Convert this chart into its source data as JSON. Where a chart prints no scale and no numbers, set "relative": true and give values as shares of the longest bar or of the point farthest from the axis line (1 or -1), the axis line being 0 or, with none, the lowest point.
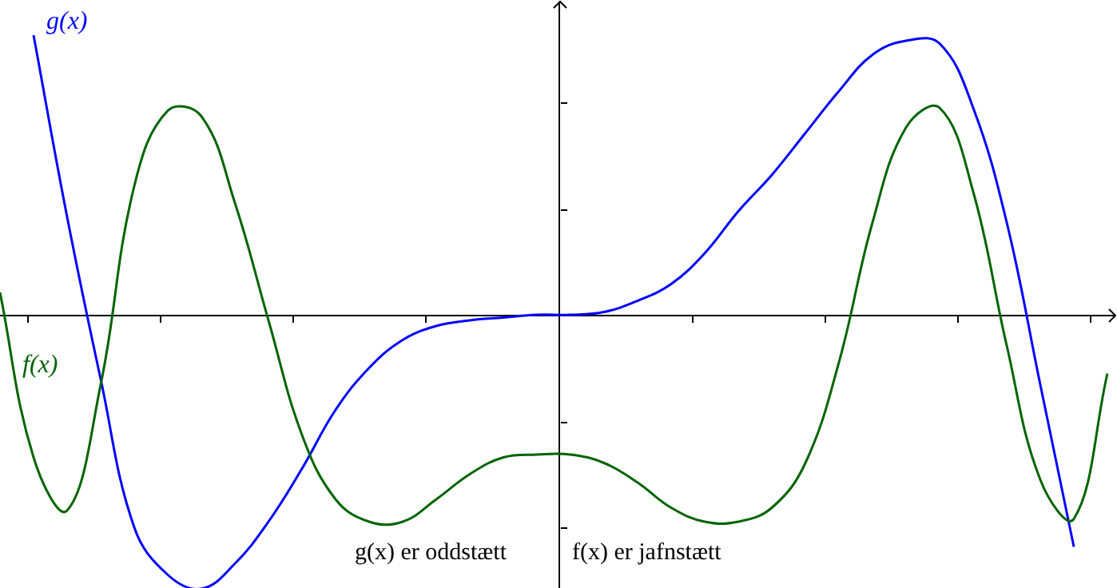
{
  "chart_data": {
    "type": "line",
    "relative": true,
    "categories": [
      null,
      null,
      null,
      null,
      null,
      null,
      null,
      null,
      null,
      null,
      null,
      null,
      null,
      null,
      null,
      null,
      null,
      null,
      null,
      null,
      null,
      null,
      null,
      null,
      null,
      null,
      null,
      null,
      null,
      null,
      null,
      null,
      null,
      null
    ],
    "series": [
      {
        "name": "f(x)",
        "color": "#006400",
        "values": [
          0.08,
          -0.51,
          -0.7,
          -0.25,
          0.46,
          0.73,
          0.71,
          0.4,
          -0.02,
          -0.43,
          -0.66,
          -0.74,
          -0.74,
          -0.66,
          -0.57,
          -0.51,
          -0.5,
          -0.5,
          -0.53,
          -0.6,
          -0.69,
          -0.74,
          -0.74,
          -0.69,
          -0.53,
          -0.17,
          0.33,
          0.67,
          0.74,
          0.44,
          -0.11,
          -0.59,
          -0.73,
          -0.21
        ]
      },
      {
        "name": "g(x)",
        "color": "#0000ff",
        "values": [
          null,
          1,
          0.35,
          -0.23,
          -0.76,
          -0.93,
          -0.98,
          -0.89,
          -0.74,
          -0.55,
          -0.34,
          -0.19,
          -0.09,
          -0.04,
          -0.02,
          -0.01,
          0,
          0,
          0.01,
          0.05,
          0.11,
          0.22,
          0.37,
          0.5,
          0.65,
          0.8,
          0.93,
          0.98,
          0.97,
          0.74,
          0.33,
          -0.25,
          -0.83,
          null
        ]
      }
    ],
    "annotations": [
      "g(x) er oddstætt",
      "f(x) er jafnstætt"
    ],
    "marker": "none"
  }
}
